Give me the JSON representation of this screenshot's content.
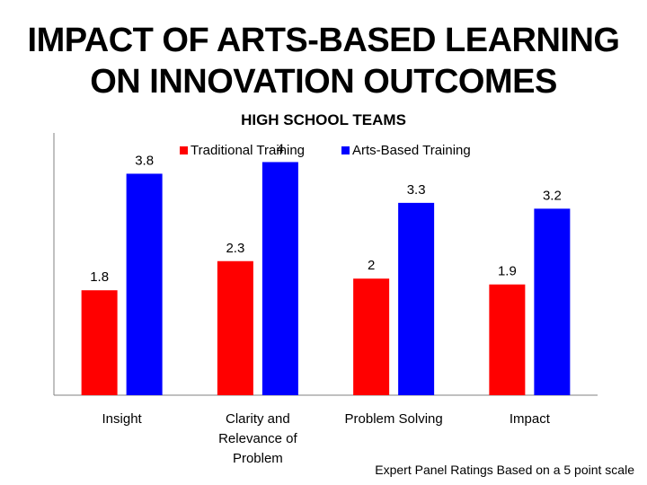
{
  "slide": {
    "title_line1": "IMPACT OF ARTS-BASED LEARNING",
    "title_line2": "ON INNOVATION OUTCOMES",
    "footnote": "Expert Panel Ratings Based on a 5 point scale"
  },
  "chart_data": {
    "type": "bar",
    "title": "HIGH SCHOOL TEAMS",
    "categories": [
      [
        "Insight"
      ],
      [
        "Clarity and",
        "Relevance of",
        "Problem"
      ],
      [
        "Problem Solving"
      ],
      [
        "Impact"
      ]
    ],
    "series": [
      {
        "name": "Traditional Training",
        "color": "#ff0000",
        "values": [
          1.8,
          2.3,
          2,
          1.9
        ]
      },
      {
        "name": "Arts-Based Training",
        "color": "#0000ff",
        "values": [
          3.8,
          4,
          3.3,
          3.2
        ]
      }
    ],
    "ylim": [
      0,
      4.5
    ],
    "xlabel": "",
    "ylabel": "",
    "grid": false,
    "legend": "top-center"
  }
}
